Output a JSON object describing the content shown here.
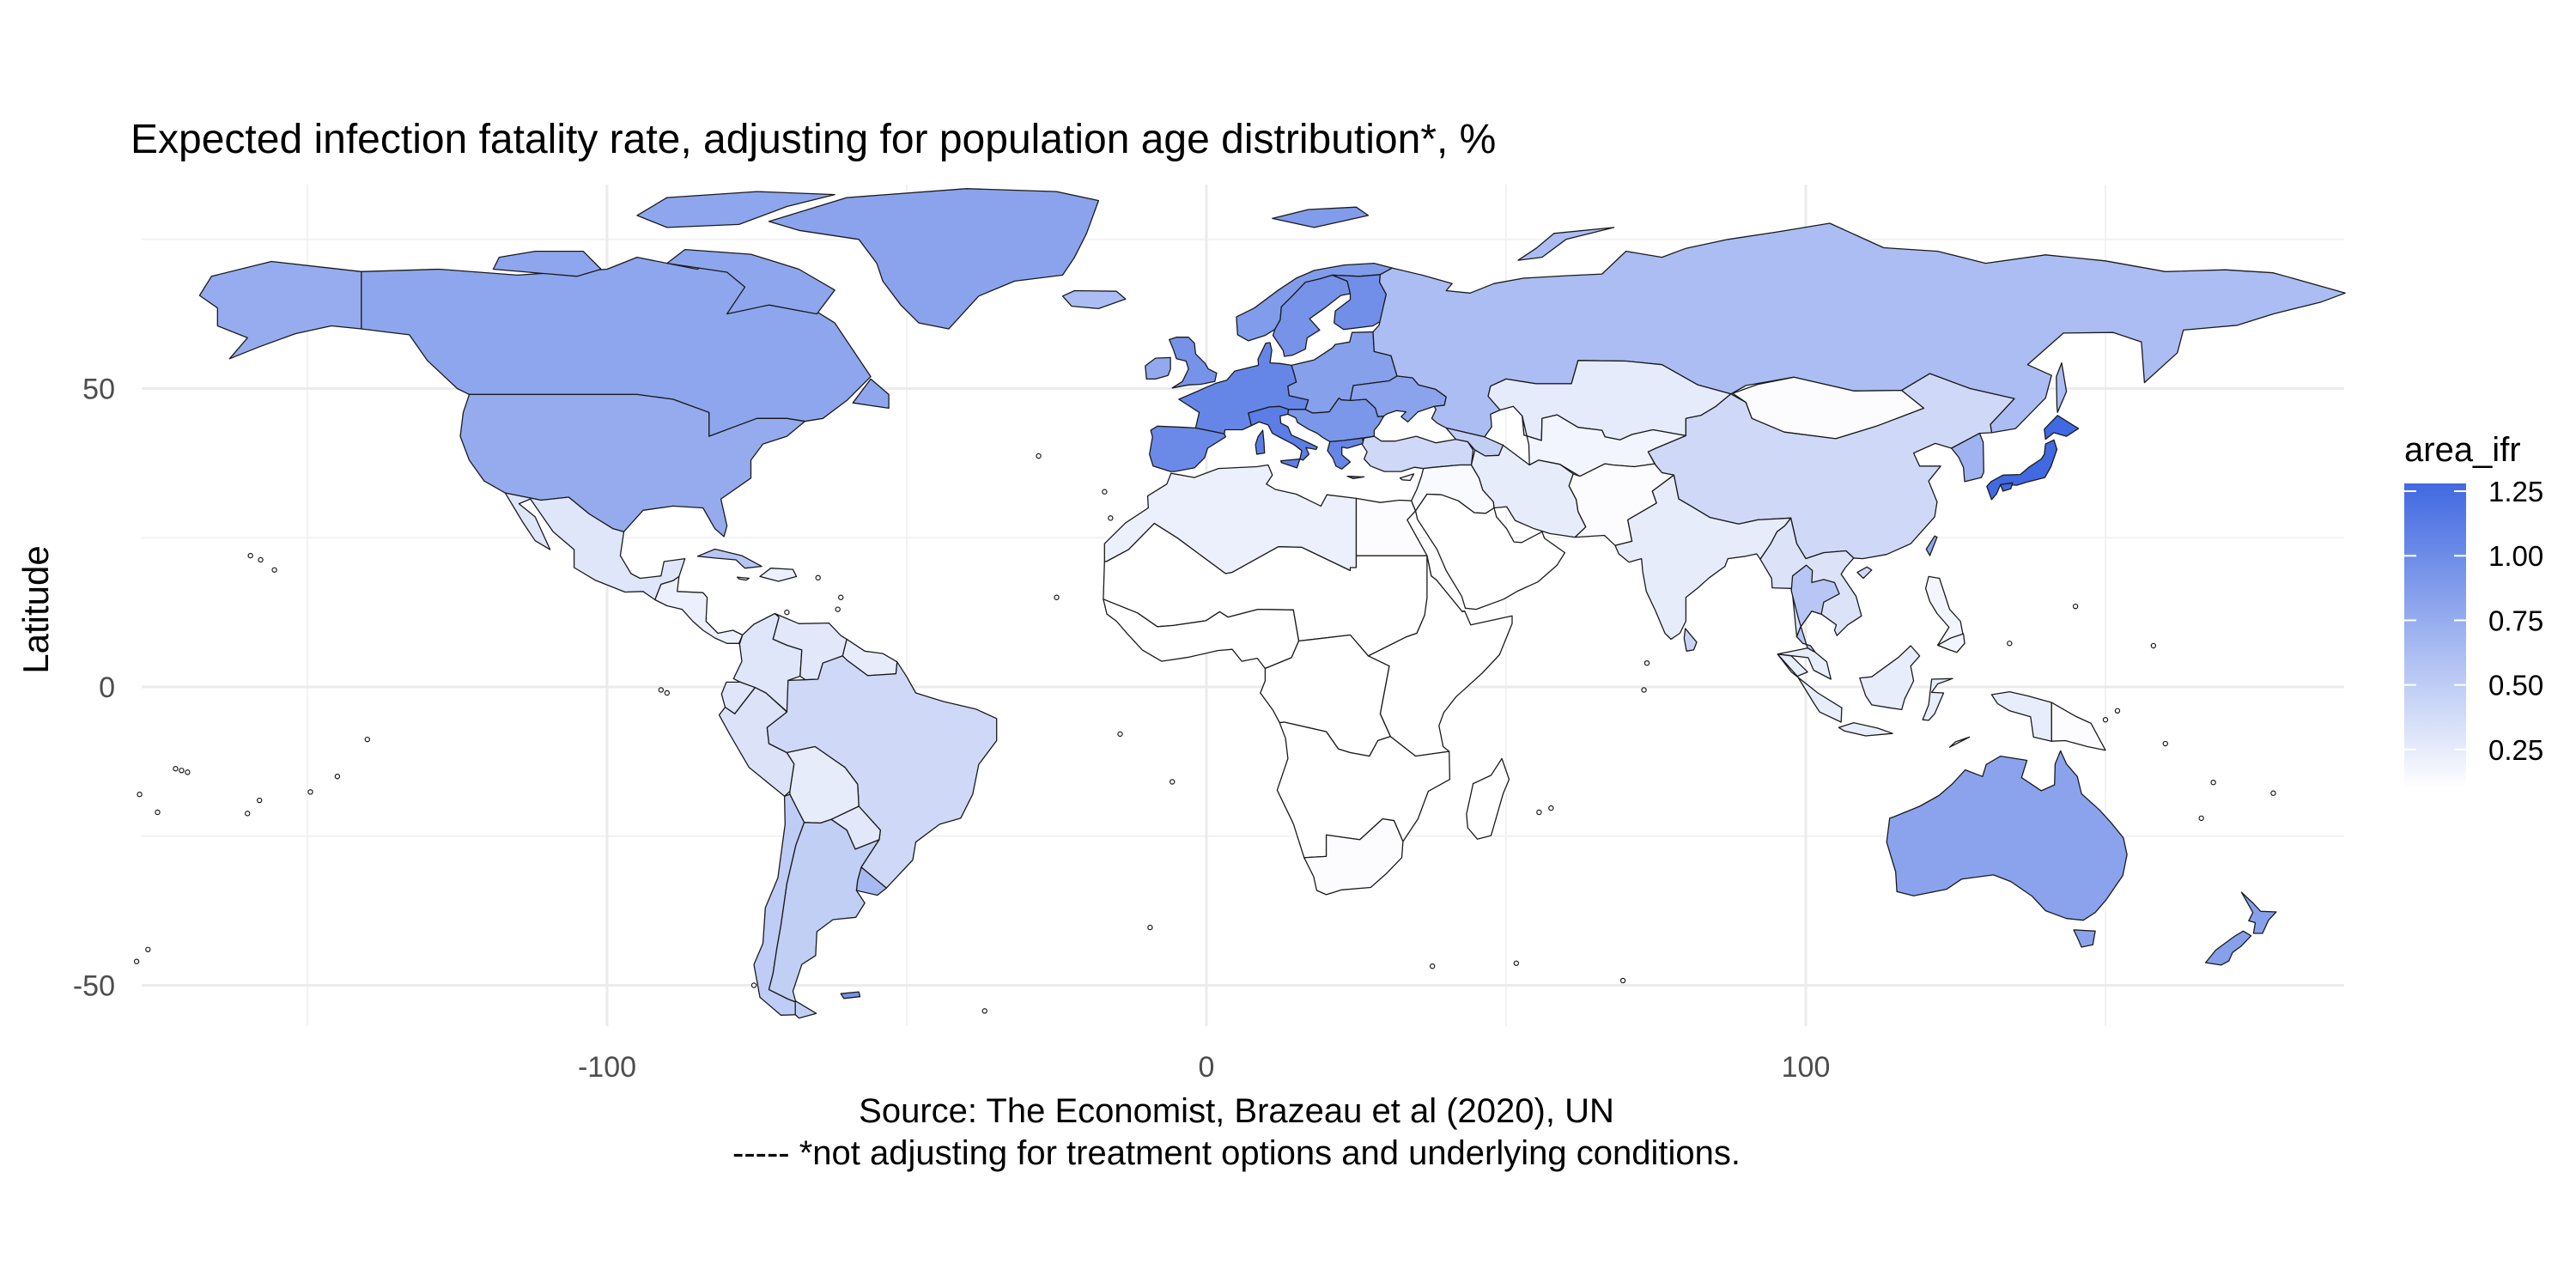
{
  "chart_data": {
    "type": "choropleth-map",
    "title": "Expected infection fatality rate, adjusting for population age distribution*, %",
    "ylabel": "Latitude",
    "xlabel": "",
    "x_ticks": [
      -100,
      0,
      100
    ],
    "y_ticks": [
      50,
      0,
      -50
    ],
    "xlim": [
      -180,
      190
    ],
    "ylim": [
      -58,
      84
    ],
    "caption_lines": [
      "Source: The Economist, Brazeau et al (2020), UN",
      "----- *not adjusting for treatment options and underlying conditions."
    ],
    "legend": {
      "title": "area_ifr",
      "ticks": [
        1.25,
        1.0,
        0.75,
        0.5,
        0.25
      ],
      "range": [
        0.1,
        1.28
      ],
      "low_color": "#ffffff",
      "high_color": "#4169e1",
      "placement": "right"
    },
    "regions": [
      {
        "name": "Canada",
        "value": 0.8
      },
      {
        "name": "Alaska",
        "value": 0.75
      },
      {
        "name": "United States",
        "value": 0.76
      },
      {
        "name": "Greenland",
        "value": 0.82
      },
      {
        "name": "Iceland",
        "value": 0.62
      },
      {
        "name": "Mexico",
        "value": 0.3
      },
      {
        "name": "Central America",
        "value": 0.22
      },
      {
        "name": "Cuba",
        "value": 0.55
      },
      {
        "name": "Colombia",
        "value": 0.3
      },
      {
        "name": "Venezuela",
        "value": 0.28
      },
      {
        "name": "Guianas",
        "value": 0.25
      },
      {
        "name": "Ecuador",
        "value": 0.3
      },
      {
        "name": "Peru",
        "value": 0.32
      },
      {
        "name": "Brazil",
        "value": 0.4
      },
      {
        "name": "Bolivia",
        "value": 0.25
      },
      {
        "name": "Paraguay",
        "value": 0.28
      },
      {
        "name": "Uruguay",
        "value": 0.65
      },
      {
        "name": "Chile",
        "value": 0.5
      },
      {
        "name": "Argentina",
        "value": 0.48
      },
      {
        "name": "United Kingdom",
        "value": 0.95
      },
      {
        "name": "Ireland",
        "value": 0.78
      },
      {
        "name": "Norway",
        "value": 0.88
      },
      {
        "name": "Sweden",
        "value": 0.95
      },
      {
        "name": "Finland",
        "value": 0.98
      },
      {
        "name": "Western Europe",
        "value": 1.05
      },
      {
        "name": "Iberia",
        "value": 1.02
      },
      {
        "name": "Italy",
        "value": 1.12
      },
      {
        "name": "Eastern Europe",
        "value": 0.85
      },
      {
        "name": "Balkans",
        "value": 0.92
      },
      {
        "name": "Greece",
        "value": 1.05
      },
      {
        "name": "Ukraine",
        "value": 0.82
      },
      {
        "name": "Russia",
        "value": 0.62
      },
      {
        "name": "Turkey",
        "value": 0.4
      },
      {
        "name": "Caucasus",
        "value": 0.48
      },
      {
        "name": "Kazakhstan",
        "value": 0.26
      },
      {
        "name": "Central Asia",
        "value": 0.18
      },
      {
        "name": "Mongolia",
        "value": 0.12
      },
      {
        "name": "China",
        "value": 0.4
      },
      {
        "name": "North Africa",
        "value": 0.22
      },
      {
        "name": "Sahel",
        "value": 0.06
      },
      {
        "name": "West Africa",
        "value": 0.04
      },
      {
        "name": "Egypt",
        "value": 0.12
      },
      {
        "name": "East Africa",
        "value": 0.05
      },
      {
        "name": "Central Africa",
        "value": 0.04
      },
      {
        "name": "Southern Africa",
        "value": 0.08
      },
      {
        "name": "South Africa",
        "value": 0.12
      },
      {
        "name": "Madagascar",
        "value": 0.08
      },
      {
        "name": "Middle East",
        "value": 0.14
      },
      {
        "name": "Arabian Peninsula",
        "value": 0.1
      },
      {
        "name": "Iran",
        "value": 0.25
      },
      {
        "name": "Pakistan & Afghanistan",
        "value": 0.12
      },
      {
        "name": "India",
        "value": 0.25
      },
      {
        "name": "Sri Lanka",
        "value": 0.45
      },
      {
        "name": "Southeast Asia Mainland",
        "value": 0.32
      },
      {
        "name": "Thailand",
        "value": 0.55
      },
      {
        "name": "Malaysia & Indonesia",
        "value": 0.24
      },
      {
        "name": "Philippines",
        "value": 0.18
      },
      {
        "name": "Papua New Guinea",
        "value": 0.12
      },
      {
        "name": "Korea",
        "value": 0.7
      },
      {
        "name": "Japan",
        "value": 1.28
      },
      {
        "name": "Taiwan",
        "value": 0.8
      },
      {
        "name": "Australia",
        "value": 0.82
      },
      {
        "name": "Tasmania",
        "value": 0.82
      },
      {
        "name": "New Zealand",
        "value": 0.85
      }
    ]
  }
}
